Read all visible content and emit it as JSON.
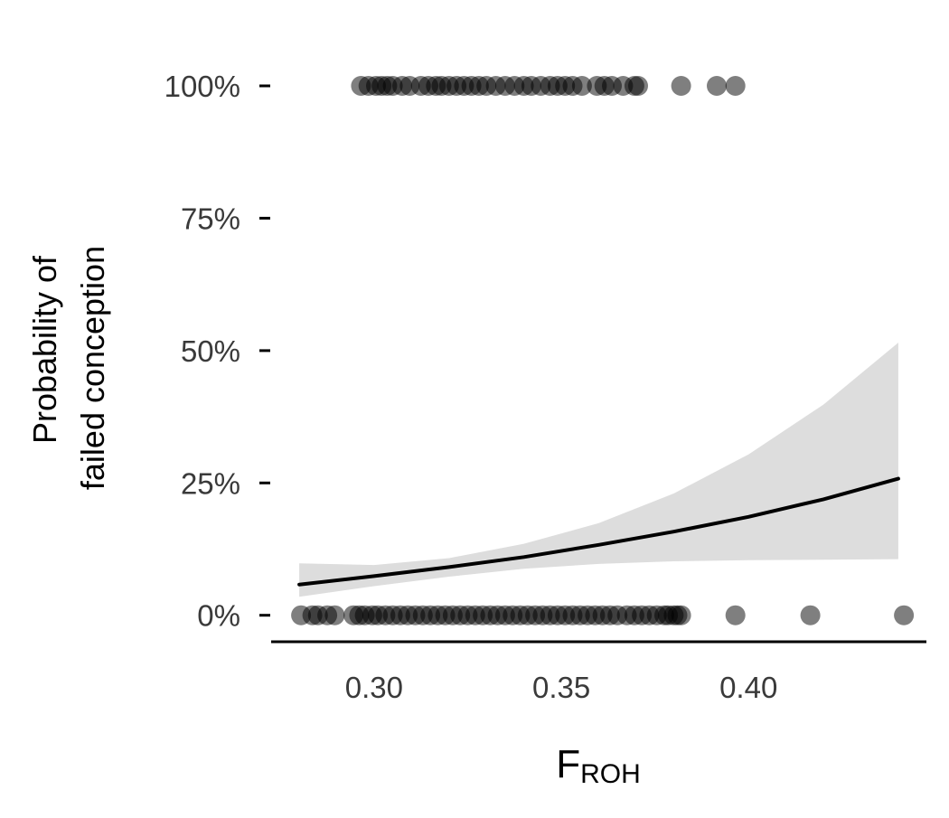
{
  "chart_data": {
    "type": "scatter",
    "title": "",
    "xlabel": {
      "main": "F",
      "subscript": "ROH"
    },
    "ylabel": [
      "Probability of",
      "failed conception"
    ],
    "xlim": [
      0.2725,
      0.4475
    ],
    "ylim": [
      -0.05,
      1.0
    ],
    "x_ticks": [
      0.3,
      0.35,
      0.4
    ],
    "x_tick_labels": [
      "0.30",
      "0.35",
      "0.40"
    ],
    "y_ticks": [
      0,
      0.25,
      0.5,
      0.75,
      1.0
    ],
    "y_tick_labels": [
      "0%",
      "25%",
      "50%",
      "75%",
      "100%"
    ],
    "grid": false,
    "legend": "none",
    "colors": {
      "point": "#000000",
      "line": "#000000",
      "ribbon": "#dddddd",
      "axis": "#000000",
      "tick_label": "#3a3a3a"
    },
    "series": [
      {
        "type": "scatter",
        "y": 1,
        "x": [
          0.2965,
          0.2985,
          0.3005,
          0.302,
          0.3035,
          0.305,
          0.3075,
          0.3095,
          0.3125,
          0.3145,
          0.3165,
          0.318,
          0.32,
          0.322,
          0.324,
          0.326,
          0.328,
          0.33,
          0.3325,
          0.335,
          0.3375,
          0.34,
          0.342,
          0.3445,
          0.347,
          0.349,
          0.351,
          0.353,
          0.3555,
          0.3595,
          0.3615,
          0.3635,
          0.3665,
          0.3695,
          0.3705,
          0.382,
          0.3915,
          0.3965
        ]
      },
      {
        "type": "scatter",
        "y": 0,
        "x": [
          0.2805,
          0.2835,
          0.285,
          0.2875,
          0.2895,
          0.2945,
          0.296,
          0.2975,
          0.2995,
          0.301,
          0.303,
          0.305,
          0.307,
          0.309,
          0.311,
          0.313,
          0.315,
          0.317,
          0.319,
          0.321,
          0.323,
          0.325,
          0.327,
          0.329,
          0.331,
          0.333,
          0.335,
          0.337,
          0.339,
          0.341,
          0.343,
          0.345,
          0.347,
          0.349,
          0.351,
          0.353,
          0.355,
          0.357,
          0.359,
          0.361,
          0.363,
          0.365,
          0.3675,
          0.3695,
          0.3715,
          0.3735,
          0.3755,
          0.3775,
          0.3785,
          0.38,
          0.381,
          0.382,
          0.3965,
          0.4165,
          0.4415
        ]
      },
      {
        "type": "line",
        "name": "fit",
        "x": [
          0.28,
          0.3,
          0.32,
          0.34,
          0.36,
          0.38,
          0.4,
          0.42,
          0.44
        ],
        "y": [
          0.058,
          0.074,
          0.091,
          0.11,
          0.133,
          0.158,
          0.186,
          0.219,
          0.258
        ],
        "ci_low": [
          0.035,
          0.055,
          0.073,
          0.088,
          0.097,
          0.102,
          0.104,
          0.105,
          0.106
        ],
        "ci_high": [
          0.098,
          0.095,
          0.108,
          0.135,
          0.174,
          0.23,
          0.304,
          0.398,
          0.515
        ]
      }
    ]
  }
}
